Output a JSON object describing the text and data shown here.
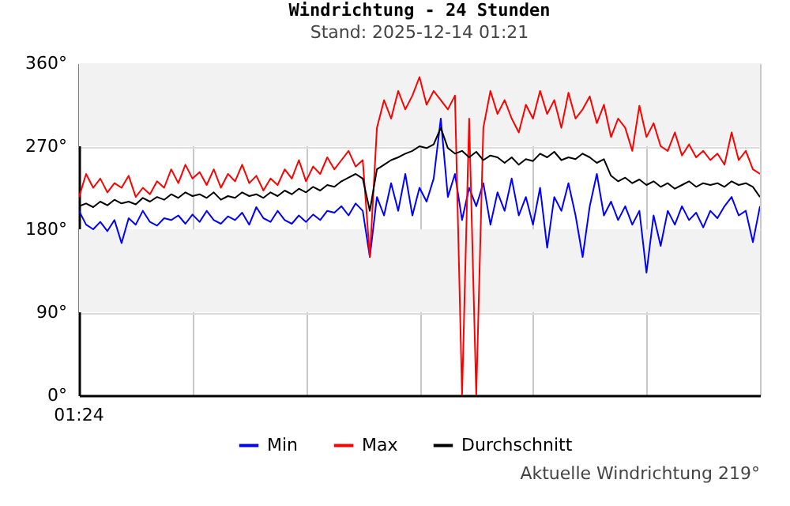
{
  "chart_data": {
    "type": "line",
    "title": "Windrichtung - 24 Stunden",
    "subtitle": "Stand: 2025-12-14 01:21",
    "annotations": [
      "01:24",
      "Aktuelle Windrichtung 219°"
    ],
    "categories": [
      null,
      null,
      null,
      null,
      null,
      null,
      null,
      null,
      null,
      null,
      null,
      null,
      null,
      null,
      null,
      null,
      null,
      null,
      null,
      null,
      null,
      null,
      null,
      null,
      null,
      null,
      null,
      null,
      null,
      null,
      null,
      null,
      null,
      null,
      null,
      null,
      null,
      null,
      null,
      null,
      null,
      null,
      null,
      null,
      null,
      null,
      null,
      null,
      null,
      null,
      null,
      null,
      null,
      null,
      null,
      null,
      null,
      null,
      null,
      null,
      null,
      null,
      null,
      null,
      null,
      null,
      null,
      null,
      null,
      null,
      null,
      null,
      null,
      null,
      null,
      null,
      null,
      null,
      null,
      null,
      null,
      null,
      null,
      null,
      null,
      null,
      null,
      null,
      null,
      null,
      null,
      null,
      null,
      null,
      null,
      null,
      null
    ],
    "series": [
      {
        "name": "Min",
        "color": "#0000ff",
        "values": [
          200,
          185,
          180,
          188,
          178,
          190,
          165,
          192,
          185,
          200,
          188,
          184,
          192,
          190,
          195,
          186,
          196,
          188,
          200,
          190,
          186,
          194,
          190,
          198,
          185,
          204,
          192,
          188,
          200,
          190,
          186,
          195,
          188,
          196,
          190,
          200,
          198,
          205,
          195,
          208,
          200,
          150,
          215,
          195,
          230,
          200,
          240,
          195,
          225,
          210,
          235,
          300,
          215,
          240,
          190,
          225,
          205,
          230,
          185,
          220,
          200,
          235,
          195,
          215,
          185,
          225,
          160,
          215,
          200,
          230,
          195,
          150,
          205,
          240,
          195,
          210,
          190,
          205,
          185,
          200,
          133,
          195,
          162,
          200,
          185,
          205,
          190,
          198,
          182,
          200,
          192,
          205,
          215,
          195,
          200,
          166,
          205
        ]
      },
      {
        "name": "Max",
        "color": "#ff0000",
        "values": [
          215,
          240,
          225,
          235,
          220,
          230,
          225,
          238,
          215,
          225,
          218,
          232,
          225,
          245,
          230,
          250,
          235,
          242,
          228,
          245,
          225,
          240,
          232,
          250,
          230,
          238,
          222,
          235,
          228,
          245,
          235,
          255,
          232,
          248,
          240,
          258,
          245,
          255,
          265,
          248,
          255,
          150,
          290,
          320,
          300,
          330,
          310,
          325,
          345,
          315,
          330,
          320,
          310,
          325,
          0,
          300,
          0,
          290,
          330,
          305,
          320,
          300,
          285,
          315,
          300,
          330,
          305,
          320,
          290,
          328,
          300,
          310,
          324,
          295,
          315,
          280,
          300,
          290,
          265,
          314,
          280,
          295,
          270,
          265,
          285,
          260,
          272,
          258,
          265,
          255,
          262,
          250,
          285,
          255,
          265,
          245,
          240
        ]
      },
      {
        "name": "Durchschnitt",
        "color": "#000000",
        "values": [
          205,
          208,
          204,
          210,
          206,
          212,
          208,
          210,
          207,
          214,
          210,
          215,
          212,
          218,
          214,
          220,
          216,
          218,
          214,
          220,
          212,
          216,
          214,
          220,
          216,
          218,
          214,
          220,
          216,
          222,
          218,
          224,
          220,
          226,
          222,
          228,
          226,
          232,
          236,
          240,
          235,
          200,
          245,
          250,
          255,
          258,
          262,
          265,
          270,
          268,
          272,
          290,
          268,
          262,
          265,
          258,
          264,
          255,
          260,
          258,
          252,
          258,
          250,
          256,
          254,
          262,
          258,
          264,
          255,
          258,
          256,
          262,
          258,
          252,
          256,
          238,
          232,
          236,
          230,
          234,
          228,
          232,
          226,
          230,
          224,
          228,
          232,
          226,
          230,
          228,
          230,
          226,
          232,
          228,
          230,
          226,
          215
        ]
      }
    ],
    "ylim": [
      0,
      360
    ],
    "yticks": [
      {
        "value": 0,
        "label": "0°"
      },
      {
        "value": 90,
        "label": "90°"
      },
      {
        "value": 180,
        "label": "180°"
      },
      {
        "value": 270,
        "label": "270°"
      },
      {
        "value": 360,
        "label": "360°"
      }
    ],
    "bands": [
      {
        "axis": "y",
        "from": 90,
        "to": 180,
        "color": "#f2f2f2"
      },
      {
        "axis": "y",
        "from": 270,
        "to": 360,
        "color": "#f2f2f2"
      }
    ],
    "grid": true,
    "legend": "bottom"
  }
}
